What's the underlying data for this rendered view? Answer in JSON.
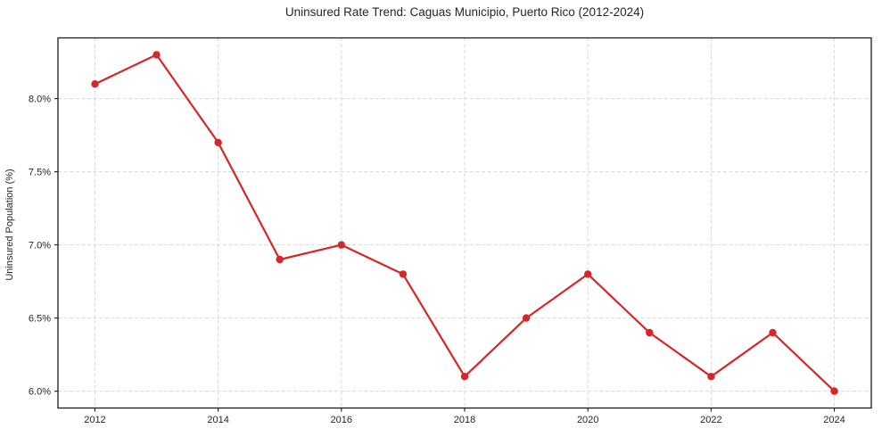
{
  "chart_data": {
    "type": "line",
    "title": "Uninsured Rate Trend: Caguas Municipio, Puerto Rico (2012-2024)",
    "xlabel": "",
    "ylabel": "Uninsured Population (%)",
    "x": [
      2012,
      2013,
      2014,
      2015,
      2016,
      2017,
      2018,
      2019,
      2020,
      2021,
      2022,
      2023,
      2024
    ],
    "values": [
      8.1,
      8.3,
      7.7,
      6.9,
      7.0,
      6.8,
      6.1,
      6.5,
      6.8,
      6.4,
      6.1,
      6.4,
      6.0
    ],
    "x_ticks": [
      2012,
      2014,
      2016,
      2018,
      2020,
      2022,
      2024
    ],
    "x_tick_labels": [
      "2012",
      "2014",
      "2016",
      "2018",
      "2020",
      "2022",
      "2024"
    ],
    "y_ticks": [
      6.0,
      6.5,
      7.0,
      7.5,
      8.0
    ],
    "y_tick_labels": [
      "6.0%",
      "6.5%",
      "7.0%",
      "7.5%",
      "8.0%"
    ],
    "xlim": [
      2011.4,
      2024.6
    ],
    "ylim": [
      5.885,
      8.415
    ],
    "grid": true,
    "grid_style": "dashed",
    "legend": "none",
    "marker": "circle",
    "line_color": "#d62728"
  },
  "colors": {
    "line": "#d62728",
    "grid": "#d8d8d8",
    "axis": "#1a1a1a",
    "text": "#262626",
    "background": "#ffffff"
  }
}
